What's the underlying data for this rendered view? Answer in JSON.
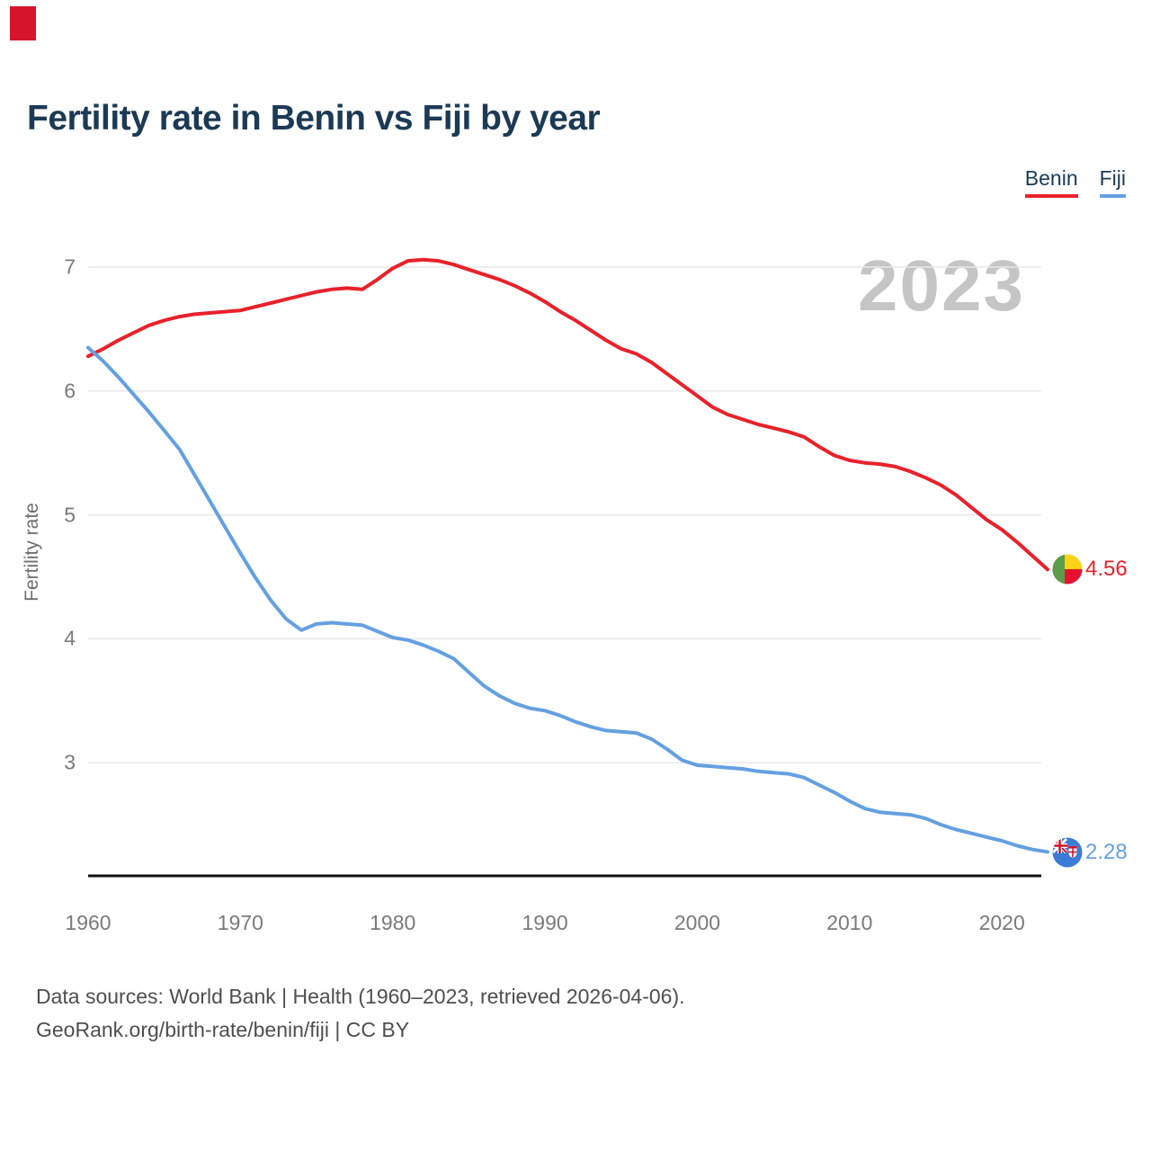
{
  "page": {
    "title": "Fertility rate in Benin vs Fiji by year"
  },
  "legend": {
    "items": [
      {
        "label": "Benin",
        "color": "#e8212a"
      },
      {
        "label": "Fiji",
        "color": "#64a0e0"
      }
    ]
  },
  "watermark": "2023",
  "end_labels": {
    "benin": {
      "value": "4.56",
      "color": "#e8212a",
      "flag": "benin-flag"
    },
    "fiji": {
      "value": "2.28",
      "color": "#64a0e0",
      "flag": "fiji-flag"
    }
  },
  "footer": {
    "line1": "Data sources: World Bank | Health (1960–2023, retrieved 2026-04-06).",
    "line2": "GeoRank.org/birth-rate/benin/fiji | CC BY"
  },
  "chart_data": {
    "type": "line",
    "title": "Fertility rate in Benin vs Fiji by year",
    "xlabel": "",
    "ylabel": "Fertility rate",
    "x_ticks": [
      1960,
      1970,
      1980,
      1990,
      2000,
      2010,
      2020
    ],
    "y_ticks": [
      7,
      6,
      5,
      4,
      3
    ],
    "xlim": [
      1960,
      2023
    ],
    "ylim": [
      2.08,
      7.15
    ],
    "grid": "horizontal",
    "legend_position": "top-right",
    "annotation": "2023",
    "x": [
      1960,
      1961,
      1962,
      1963,
      1964,
      1965,
      1966,
      1967,
      1968,
      1969,
      1970,
      1971,
      1972,
      1973,
      1974,
      1975,
      1976,
      1977,
      1978,
      1979,
      1980,
      1981,
      1982,
      1983,
      1984,
      1985,
      1986,
      1987,
      1988,
      1989,
      1990,
      1991,
      1992,
      1993,
      1994,
      1995,
      1996,
      1997,
      1998,
      1999,
      2000,
      2001,
      2002,
      2003,
      2004,
      2005,
      2006,
      2007,
      2008,
      2009,
      2010,
      2011,
      2012,
      2013,
      2014,
      2015,
      2016,
      2017,
      2018,
      2019,
      2020,
      2021,
      2022,
      2023
    ],
    "series": [
      {
        "name": "Benin",
        "color": "#e8212a",
        "end_value": 4.56,
        "values": [
          6.28,
          6.34,
          6.41,
          6.47,
          6.53,
          6.57,
          6.6,
          6.62,
          6.63,
          6.64,
          6.65,
          6.68,
          6.71,
          6.74,
          6.77,
          6.8,
          6.82,
          6.83,
          6.82,
          6.9,
          6.99,
          7.05,
          7.06,
          7.05,
          7.02,
          6.98,
          6.94,
          6.9,
          6.85,
          6.79,
          6.72,
          6.64,
          6.57,
          6.49,
          6.41,
          6.34,
          6.3,
          6.23,
          6.14,
          6.05,
          5.96,
          5.87,
          5.81,
          5.77,
          5.73,
          5.7,
          5.67,
          5.63,
          5.55,
          5.48,
          5.44,
          5.42,
          5.41,
          5.39,
          5.35,
          5.3,
          5.24,
          5.16,
          5.06,
          4.96,
          4.88,
          4.78,
          4.67,
          4.56
        ]
      },
      {
        "name": "Fiji",
        "color": "#64a0e0",
        "end_value": 2.28,
        "values": [
          6.35,
          6.24,
          6.11,
          5.97,
          5.83,
          5.68,
          5.53,
          5.32,
          5.11,
          4.9,
          4.69,
          4.49,
          4.31,
          4.16,
          4.07,
          4.12,
          4.13,
          4.12,
          4.11,
          4.06,
          4.01,
          3.99,
          3.95,
          3.9,
          3.84,
          3.73,
          3.62,
          3.54,
          3.48,
          3.44,
          3.42,
          3.38,
          3.33,
          3.29,
          3.26,
          3.25,
          3.24,
          3.19,
          3.11,
          3.02,
          2.98,
          2.97,
          2.96,
          2.95,
          2.93,
          2.92,
          2.91,
          2.88,
          2.82,
          2.76,
          2.69,
          2.63,
          2.6,
          2.59,
          2.58,
          2.55,
          2.5,
          2.46,
          2.43,
          2.4,
          2.37,
          2.33,
          2.3,
          2.28
        ]
      }
    ]
  }
}
